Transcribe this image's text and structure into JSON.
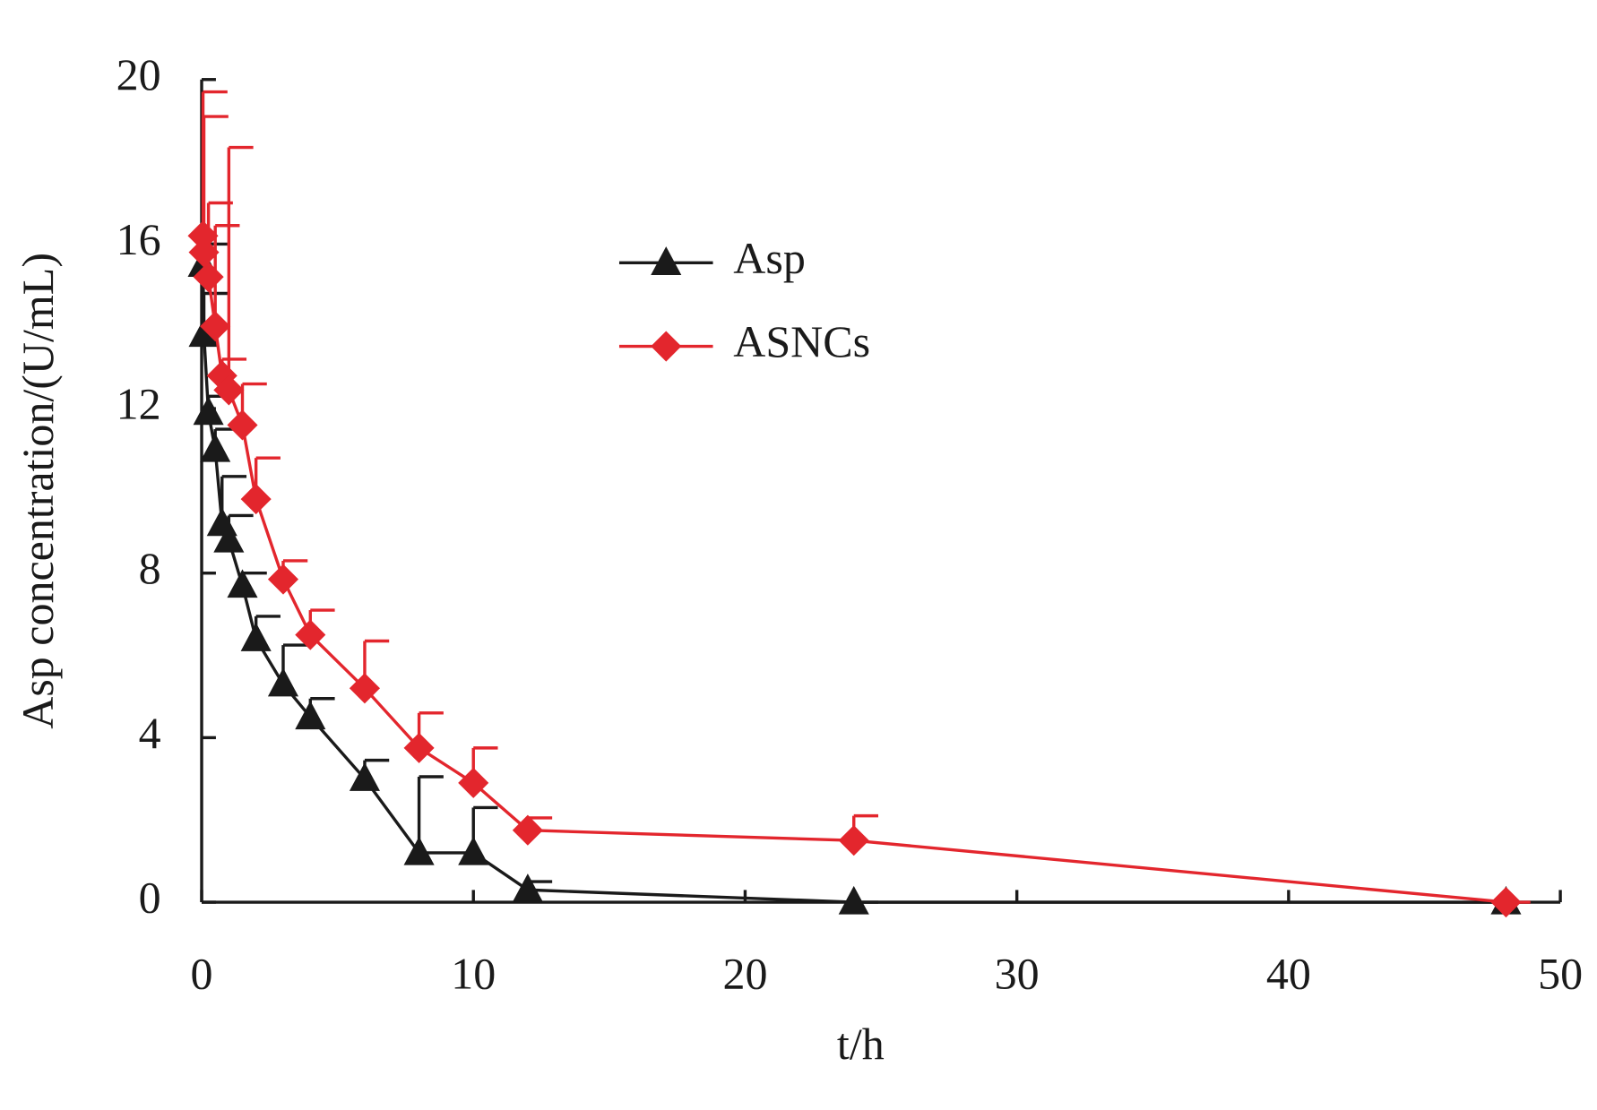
{
  "chart_data": {
    "type": "line",
    "x_label": "t/h",
    "y_label": "Asp concentration/(U/mL)",
    "x": [
      0.05,
      0.083,
      0.25,
      0.5,
      0.75,
      1,
      1.5,
      2,
      3,
      4,
      6,
      8,
      10,
      12,
      24,
      48
    ],
    "series": [
      {
        "name": "Asp",
        "color": "#1a1a1a",
        "marker": "triangle",
        "values": [
          15.5,
          13.8,
          11.9,
          11.0,
          9.2,
          8.8,
          7.7,
          6.4,
          5.3,
          4.5,
          3.0,
          1.2,
          1.2,
          0.3,
          0,
          0
        ],
        "errors": [
          0.5,
          1.0,
          0.4,
          0.5,
          1.15,
          0.6,
          0.3,
          0.55,
          0.95,
          0.45,
          0.45,
          1.85,
          1.1,
          0.2,
          0,
          0
        ]
      },
      {
        "name": "ASNCs",
        "color": "#e3262d",
        "marker": "diamond",
        "values": [
          16.2,
          15.8,
          15.2,
          14.0,
          12.8,
          12.45,
          11.6,
          9.8,
          7.85,
          6.5,
          5.2,
          3.75,
          2.9,
          1.75,
          1.5,
          0
        ],
        "errors": [
          3.5,
          3.3,
          1.8,
          2.45,
          0.4,
          5.9,
          1.0,
          1.0,
          0.45,
          0.6,
          1.15,
          0.85,
          0.85,
          0.3,
          0.6,
          0
        ]
      }
    ],
    "xlim": [
      0,
      50
    ],
    "xticks": [
      0,
      10,
      20,
      30,
      40,
      50
    ],
    "ylim": [
      0,
      20
    ],
    "yticks": [
      0,
      4,
      8,
      12,
      16,
      20
    ]
  }
}
